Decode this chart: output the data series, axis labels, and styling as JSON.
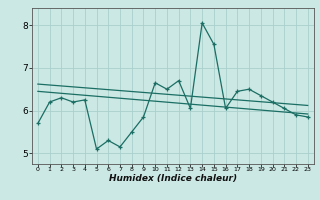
{
  "xlabel": "Humidex (Indice chaleur)",
  "bg_color": "#cce8e4",
  "grid_color": "#aacfcc",
  "line_color": "#1a6e64",
  "xlim": [
    -0.5,
    23.5
  ],
  "ylim": [
    4.75,
    8.4
  ],
  "yticks": [
    5,
    6,
    7,
    8
  ],
  "xticks": [
    0,
    1,
    2,
    3,
    4,
    5,
    6,
    7,
    8,
    9,
    10,
    11,
    12,
    13,
    14,
    15,
    16,
    17,
    18,
    19,
    20,
    21,
    22,
    23
  ],
  "data_x": [
    0,
    1,
    2,
    3,
    4,
    5,
    6,
    7,
    8,
    9,
    10,
    11,
    12,
    13,
    14,
    15,
    16,
    17,
    18,
    19,
    20,
    21,
    22,
    23
  ],
  "data_y": [
    5.7,
    6.2,
    6.3,
    6.2,
    6.25,
    5.1,
    5.3,
    5.15,
    5.5,
    5.85,
    6.65,
    6.5,
    6.7,
    6.05,
    8.05,
    7.55,
    6.05,
    6.45,
    6.5,
    6.35,
    6.2,
    6.05,
    5.9,
    5.85
  ],
  "trend1_x": [
    0,
    23
  ],
  "trend1_y": [
    6.62,
    6.12
  ],
  "trend2_x": [
    0,
    23
  ],
  "trend2_y": [
    6.45,
    5.92
  ]
}
